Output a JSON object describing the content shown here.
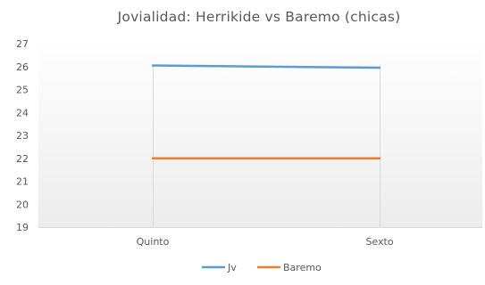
{
  "chart_data": {
    "type": "line",
    "title": "Jovialidad:  Herrikide  vs  Baremo  (chicas)",
    "categories": [
      "Quinto",
      "Sexto"
    ],
    "ylim": [
      19,
      27
    ],
    "yticks": [
      "19",
      "20",
      "21",
      "22",
      "23",
      "24",
      "25",
      "26",
      "27"
    ],
    "grid": false,
    "legend_position": "bottom",
    "series": [
      {
        "name": "Jv",
        "values": [
          26.05,
          25.95
        ],
        "color": "#5b9bd5"
      },
      {
        "name": "Baremo",
        "values": [
          22,
          22
        ],
        "color": "#ed7d31"
      }
    ]
  }
}
